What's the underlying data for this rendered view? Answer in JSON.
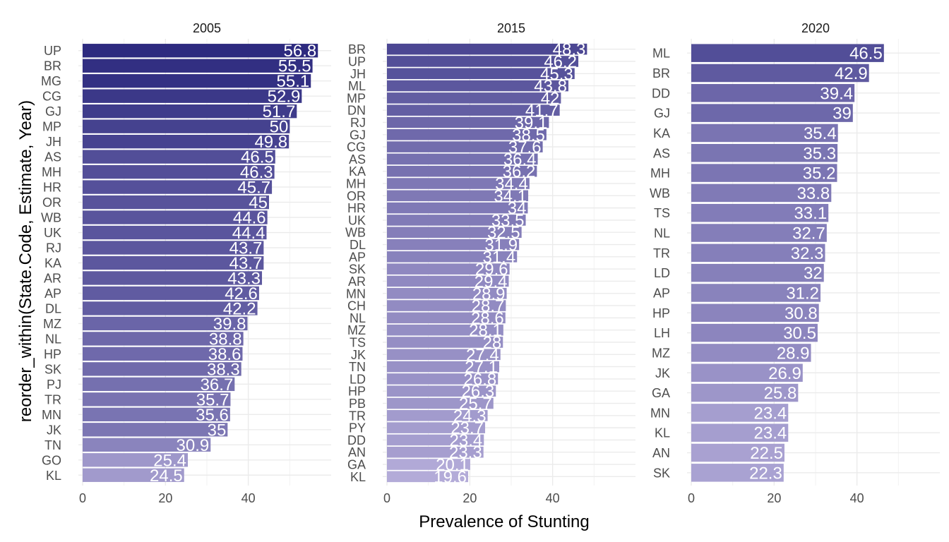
{
  "chart_data": {
    "type": "bar",
    "orientation": "horizontal",
    "xlabel": "Prevalence of Stunting",
    "ylabel": "reorder_within(State.Code, Estimate, Year)",
    "xlim": [
      0,
      60
    ],
    "x_ticks": [
      0,
      20,
      40
    ],
    "grid": true,
    "color_scale": {
      "high": "#2d2a7f",
      "low": "#b3abd8"
    },
    "facets": [
      {
        "title": "2005",
        "categories": [
          "UP",
          "BR",
          "MG",
          "CG",
          "GJ",
          "MP",
          "JH",
          "AS",
          "MH",
          "HR",
          "OR",
          "WB",
          "UK",
          "RJ",
          "KA",
          "AR",
          "AP",
          "DL",
          "MZ",
          "NL",
          "HP",
          "SK",
          "PJ",
          "TR",
          "MN",
          "JK",
          "TN",
          "GO",
          "KL"
        ],
        "values": [
          56.8,
          55.5,
          55.1,
          52.9,
          51.7,
          50,
          49.8,
          46.5,
          46.3,
          45.7,
          45,
          44.6,
          44.4,
          43.7,
          43.7,
          43.3,
          42.6,
          42.2,
          39.8,
          38.8,
          38.6,
          38.3,
          36.7,
          35.7,
          35.6,
          35,
          30.9,
          25.4,
          24.5
        ],
        "value_labels": [
          "56.8",
          "55.5",
          "55.1",
          "52.9",
          "51.7",
          "50",
          "49.8",
          "46.5",
          "46.3",
          "45.7",
          "45",
          "44.6",
          "44.4",
          "43.7",
          "43.7",
          "43.3",
          "42.6",
          "42.2",
          "39.8",
          "38.8",
          "38.6",
          "38.3",
          "36.7",
          "35.7",
          "35.6",
          "35",
          "30.9",
          "25.4",
          "24.5"
        ]
      },
      {
        "title": "2015",
        "categories": [
          "BR",
          "UP",
          "JH",
          "ML",
          "MP",
          "DN",
          "RJ",
          "GJ",
          "CG",
          "AS",
          "KA",
          "MH",
          "OR",
          "HR",
          "UK",
          "WB",
          "DL",
          "AP",
          "SK",
          "AR",
          "MN",
          "CH",
          "NL",
          "MZ",
          "TS",
          "JK",
          "TN",
          "LD",
          "HP",
          "PB",
          "TR",
          "PY",
          "DD",
          "AN",
          "GA",
          "KL"
        ],
        "values": [
          48.3,
          46.2,
          45.3,
          43.8,
          42,
          41.7,
          39.1,
          38.5,
          37.6,
          36.4,
          36.2,
          34.4,
          34.1,
          34,
          33.5,
          32.5,
          31.9,
          31.4,
          29.6,
          29.4,
          28.9,
          28.7,
          28.6,
          28.1,
          28,
          27.4,
          27.1,
          26.8,
          26.3,
          25.7,
          24.3,
          23.7,
          23.4,
          23.3,
          20.1,
          19.6
        ],
        "value_labels": [
          "48.3",
          "46.2",
          "45.3",
          "43.8",
          "42",
          "41.7",
          "39.1",
          "38.5",
          "37.6",
          "36.4",
          "36.2",
          "34.4",
          "34.1",
          "34",
          "33.5",
          "32.5",
          "31.9",
          "31.4",
          "29.6",
          "29.4",
          "28.9",
          "28.7",
          "28.6",
          "28.1",
          "28",
          "27.4",
          "27.1",
          "26.8",
          "26.3",
          "25.7",
          "24.3",
          "23.7",
          "23.4",
          "23.3",
          "20.1",
          "19.6"
        ]
      },
      {
        "title": "2020",
        "categories": [
          "ML",
          "BR",
          "DD",
          "GJ",
          "KA",
          "AS",
          "MH",
          "WB",
          "TS",
          "NL",
          "TR",
          "LD",
          "AP",
          "HP",
          "LH",
          "MZ",
          "JK",
          "GA",
          "MN",
          "KL",
          "AN",
          "SK"
        ],
        "values": [
          46.5,
          42.9,
          39.4,
          39,
          35.4,
          35.3,
          35.2,
          33.8,
          33.1,
          32.7,
          32.3,
          32,
          31.2,
          30.8,
          30.5,
          28.9,
          26.9,
          25.8,
          23.4,
          23.4,
          22.5,
          22.3
        ],
        "value_labels": [
          "46.5",
          "42.9",
          "39.4",
          "39",
          "35.4",
          "35.3",
          "35.2",
          "33.8",
          "33.1",
          "32.7",
          "32.3",
          "32",
          "31.2",
          "30.8",
          "30.5",
          "28.9",
          "26.9",
          "25.8",
          "23.4",
          "23.4",
          "22.5",
          "22.3"
        ]
      }
    ]
  }
}
